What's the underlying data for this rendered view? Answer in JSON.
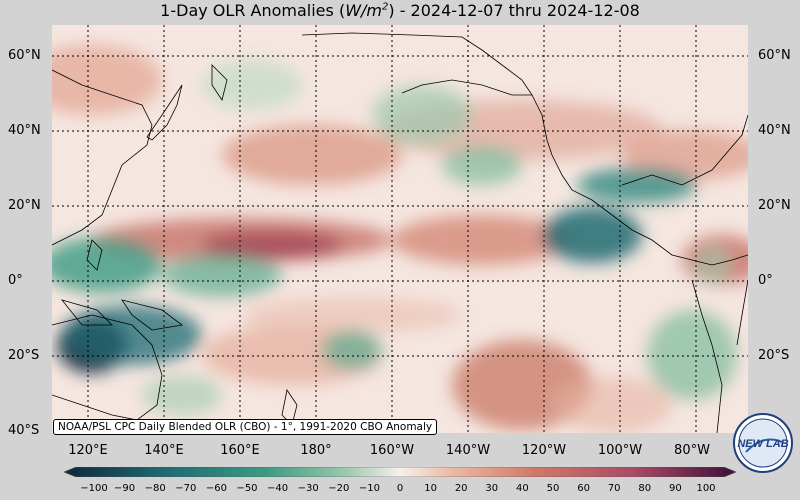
{
  "title": {
    "prefix": "1-Day OLR Anomalies (",
    "unit_base": "W/m",
    "unit_exp": "2",
    "suffix": ") - 2024-12-07 thru 2024-12-08"
  },
  "lat_labels": [
    "60°N",
    "40°N",
    "20°N",
    "0°",
    "20°S",
    "40°S"
  ],
  "lon_labels": [
    "120°E",
    "140°E",
    "160°E",
    "180°",
    "160°W",
    "140°W",
    "120°W",
    "100°W",
    "80°W"
  ],
  "credit": "NOAA/PSL CPC Daily Blended OLR (CBO) - 1°, 1991-2020 CBO Anomaly",
  "colorbar": {
    "ticks": [
      "−100",
      "−90",
      "−80",
      "−70",
      "−60",
      "−50",
      "−40",
      "−30",
      "−20",
      "−10",
      "0",
      "10",
      "20",
      "30",
      "40",
      "50",
      "60",
      "70",
      "80",
      "90",
      "100"
    ],
    "colors": {
      "strong_negative": "#12263a",
      "negative": "#1e6b73",
      "moderate_negative": "#3c9a82",
      "weak_negative": "#9cc9ad",
      "neutral": "#f7efec",
      "weak_positive": "#eab8a3",
      "moderate_positive": "#cf7a68",
      "positive": "#a84a63",
      "strong_positive": "#3b0f3a"
    }
  },
  "logo": {
    "text": "NEW LAB"
  }
}
